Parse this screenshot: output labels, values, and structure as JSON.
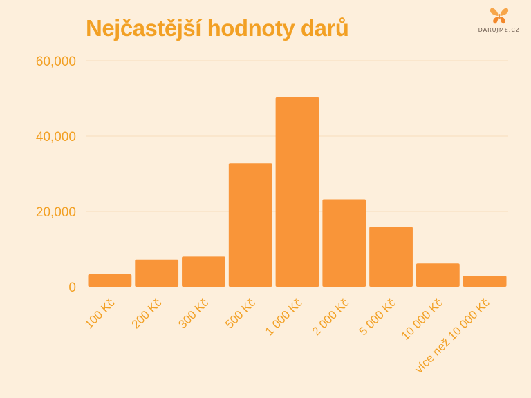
{
  "title": "Nejčastější hodnoty darů",
  "logo": {
    "text": "DARUJME.CZ",
    "icon": "butterfly-icon"
  },
  "colors": {
    "background": "#fdefdc",
    "bar": "#f99539",
    "accent": "#f2a024",
    "grid": "#f6dcbc"
  },
  "chart_data": {
    "type": "bar",
    "title": "Nejčastější hodnoty darů",
    "xlabel": "",
    "ylabel": "",
    "categories": [
      "100 Kč",
      "200 Kč",
      "300 Kč",
      "500 Kč",
      "1 000 Kč",
      "2 000 Kč",
      "5 000 Kč",
      "10 000 Kč",
      "více než 10 000 Kč"
    ],
    "values": [
      3300,
      7200,
      8000,
      32800,
      50300,
      23200,
      15900,
      6200,
      2900
    ],
    "ylim": [
      0,
      60000
    ],
    "yticks": [
      0,
      20000,
      40000,
      60000
    ],
    "ytick_labels": [
      "0",
      "20,000",
      "40,000",
      "60,000"
    ],
    "grid": true,
    "legend": "none"
  }
}
